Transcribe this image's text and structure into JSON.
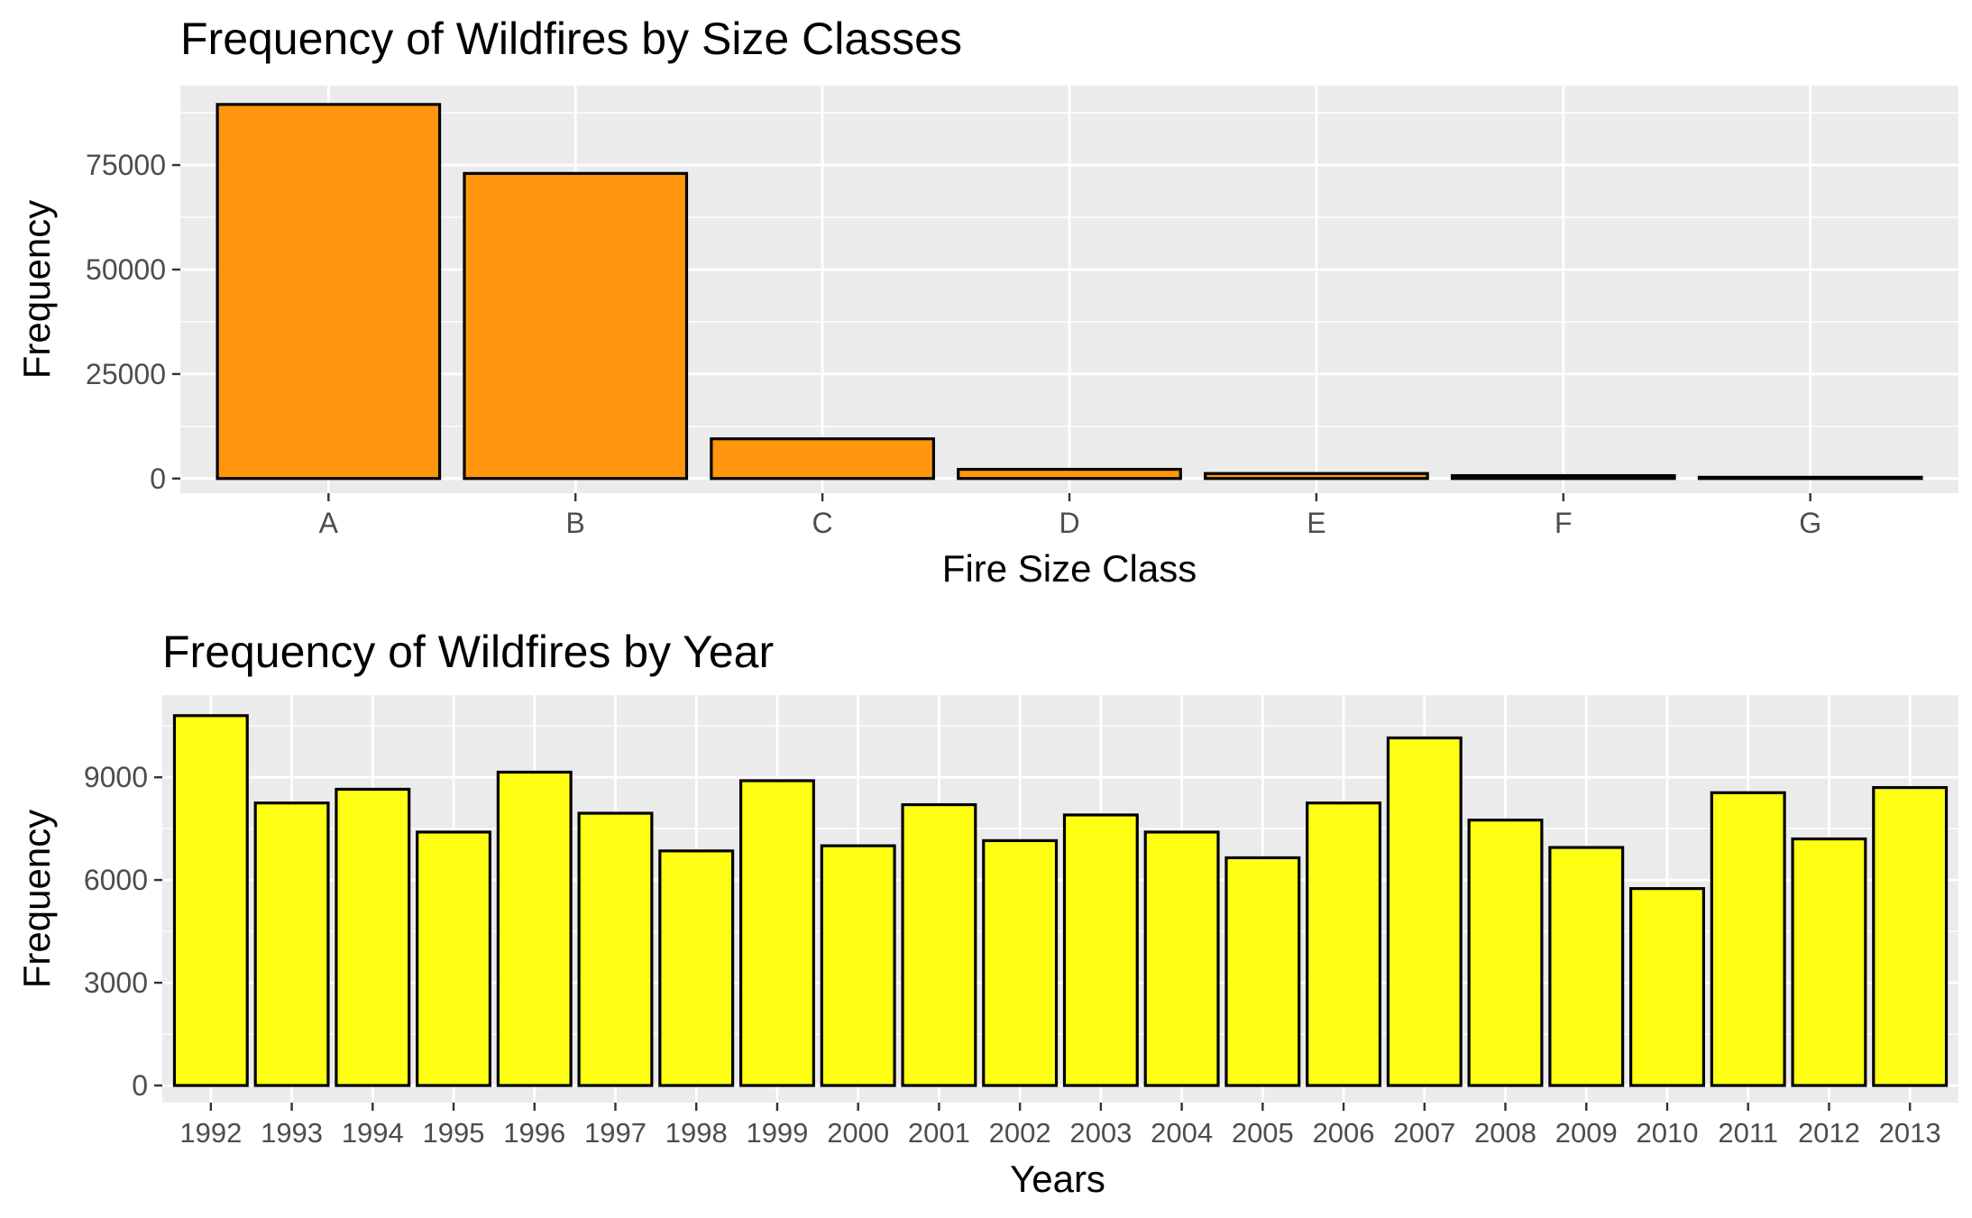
{
  "chart_data": [
    {
      "type": "bar",
      "title": "Frequency of Wildfires by Size Classes",
      "xlabel": "Fire Size Class",
      "ylabel": "Frequency",
      "categories": [
        "A",
        "B",
        "C",
        "D",
        "E",
        "F",
        "G"
      ],
      "values": [
        89500,
        73000,
        9500,
        2200,
        1200,
        700,
        300
      ],
      "ylim": [
        -3500,
        94000
      ],
      "yticks": [
        0,
        25000,
        50000,
        75000
      ],
      "ytick_labels": [
        "0",
        "25000",
        "50000",
        "75000"
      ],
      "fill": "#ff960d",
      "outline": "#000000",
      "grid": true
    },
    {
      "type": "bar",
      "title": "Frequency of Wildfires by Year",
      "xlabel": "Years",
      "ylabel": "Frequency",
      "categories": [
        "1992",
        "1993",
        "1994",
        "1995",
        "1996",
        "1997",
        "1998",
        "1999",
        "2000",
        "2001",
        "2002",
        "2003",
        "2004",
        "2005",
        "2006",
        "2007",
        "2008",
        "2009",
        "2010",
        "2011",
        "2012",
        "2013"
      ],
      "values": [
        10800,
        8250,
        8650,
        7400,
        9150,
        7950,
        6850,
        8900,
        7000,
        8200,
        7150,
        7900,
        7400,
        6650,
        8250,
        10150,
        7750,
        6950,
        5750,
        8550,
        7200,
        8700
      ],
      "ylim": [
        -500,
        11400
      ],
      "yticks": [
        0,
        3000,
        6000,
        9000
      ],
      "ytick_labels": [
        "0",
        "3000",
        "6000",
        "9000"
      ],
      "fill": "#ffff14",
      "outline": "#000000",
      "grid": true
    }
  ],
  "colors": {
    "panel_background": "#ebebeb",
    "gridline": "#ffffff",
    "tick_text": "#4d4d4d"
  }
}
